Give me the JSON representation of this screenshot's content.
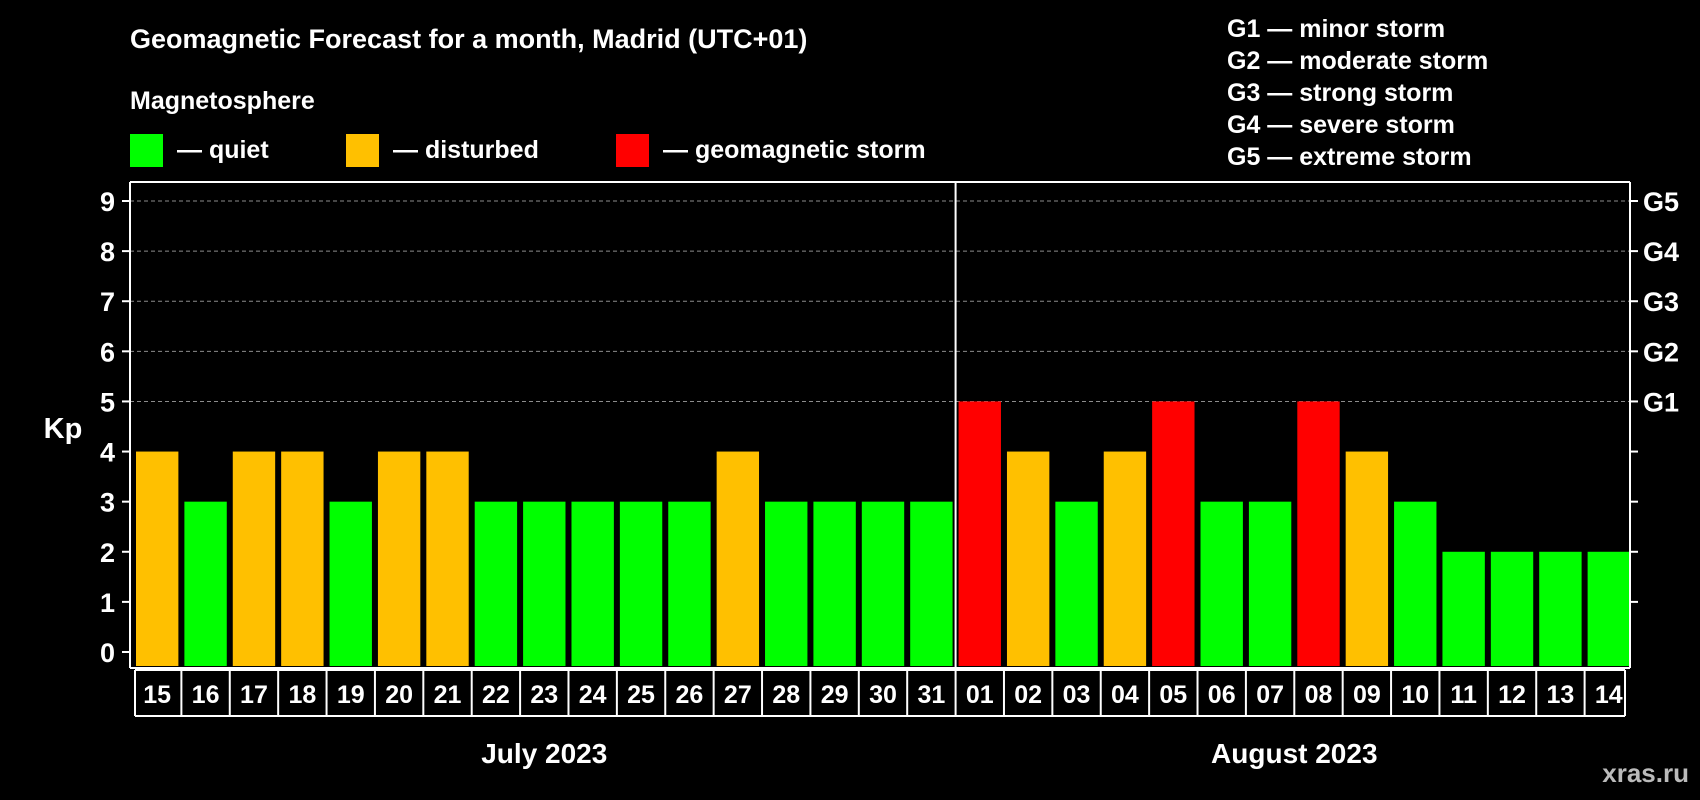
{
  "title": "Geomagnetic Forecast for a month, Madrid (UTC+01)",
  "legend": {
    "heading": "Magnetosphere",
    "items": [
      {
        "label": "— quiet",
        "color": "#00ff00"
      },
      {
        "label": "— disturbed",
        "color": "#ffc000"
      },
      {
        "label": "— geomagnetic storm",
        "color": "#ff0000"
      }
    ]
  },
  "storm_scale": [
    "G1 — minor storm",
    "G2 — moderate storm",
    "G3 — strong storm",
    "G4 — severe storm",
    "G5 — extreme storm"
  ],
  "watermark": "xras.ru",
  "chart_data": {
    "type": "bar",
    "title": "Geomagnetic Forecast for a month, Madrid (UTC+01)",
    "ylabel": "Kp",
    "ylim": [
      0,
      9
    ],
    "yticks": [
      0,
      1,
      2,
      3,
      4,
      5,
      6,
      7,
      8,
      9
    ],
    "right_axis": [
      {
        "value": 5,
        "label": "G1"
      },
      {
        "value": 6,
        "label": "G2"
      },
      {
        "value": 7,
        "label": "G3"
      },
      {
        "value": 8,
        "label": "G4"
      },
      {
        "value": 9,
        "label": "G5"
      }
    ],
    "grid": "dashed horizontal at 5-9",
    "months": [
      {
        "label": "July 2023",
        "days": 17
      },
      {
        "label": "August 2023",
        "days": 14
      }
    ],
    "categories": [
      "15",
      "16",
      "17",
      "18",
      "19",
      "20",
      "21",
      "22",
      "23",
      "24",
      "25",
      "26",
      "27",
      "28",
      "29",
      "30",
      "31",
      "01",
      "02",
      "03",
      "04",
      "05",
      "06",
      "07",
      "08",
      "09",
      "10",
      "11",
      "12",
      "13",
      "14"
    ],
    "values": [
      4,
      3,
      4,
      4,
      3,
      4,
      4,
      3,
      3,
      3,
      3,
      3,
      4,
      3,
      3,
      3,
      3,
      5,
      4,
      3,
      4,
      5,
      3,
      3,
      5,
      4,
      3,
      2,
      2,
      2,
      2
    ],
    "color_rule": {
      "quiet_max": 3,
      "disturbed": 4,
      "storm_min": 5
    },
    "colors": {
      "quiet": "#00ff00",
      "disturbed": "#ffc000",
      "storm": "#ff0000"
    }
  }
}
